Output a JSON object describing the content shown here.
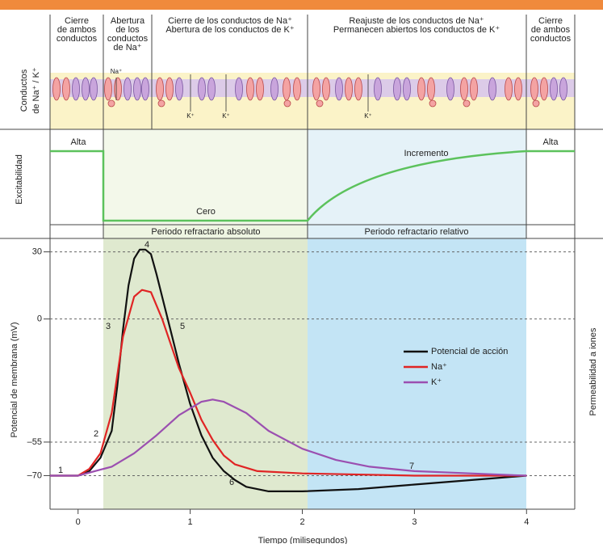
{
  "chart_data": {
    "type": "line",
    "x_label": "Tiempo (milisegundos)",
    "y_label": "Potencial de membrana (mV)",
    "y2_label": "Permeabilidad a iones",
    "xlim": [
      -0.25,
      4.43
    ],
    "xticks": [
      0,
      1,
      2,
      3,
      4
    ],
    "ylim": [
      -85,
      36
    ],
    "yticks": [
      30,
      0,
      {
        "value": -55,
        "label": "–55"
      },
      {
        "value": -70,
        "label": "–70"
      }
    ],
    "grid": true,
    "grid_style": "dashed",
    "series": [
      {
        "name": "Potencial de acción",
        "color": "#111111",
        "x": [
          -0.25,
          0,
          0.1,
          0.2,
          0.3,
          0.35,
          0.4,
          0.45,
          0.5,
          0.55,
          0.6,
          0.65,
          0.7,
          0.8,
          0.9,
          1.0,
          1.1,
          1.2,
          1.3,
          1.4,
          1.5,
          1.7,
          2.0,
          2.5,
          3.0,
          3.5,
          4.0
        ],
        "values": [
          -70,
          -70,
          -68,
          -62,
          -50,
          -30,
          -5,
          15,
          27,
          31,
          31,
          29,
          20,
          0,
          -20,
          -38,
          -52,
          -62,
          -68,
          -72,
          -75,
          -77,
          -77,
          -76,
          -74,
          -72,
          -70
        ]
      },
      {
        "name": "Na⁺",
        "color": "#e02424",
        "x": [
          -0.25,
          0,
          0.1,
          0.2,
          0.3,
          0.4,
          0.5,
          0.57,
          0.65,
          0.75,
          0.9,
          1.0,
          1.1,
          1.2,
          1.3,
          1.4,
          1.6,
          2.0,
          3.0,
          4.0
        ],
        "values": [
          -70,
          -70,
          -67,
          -60,
          -42,
          -8,
          10,
          13,
          12,
          0,
          -22,
          -33,
          -45,
          -54,
          -61,
          -65,
          -68,
          -69,
          -70,
          -70
        ]
      },
      {
        "name": "K⁺",
        "color": "#9b4fb0",
        "x": [
          -0.25,
          0,
          0.3,
          0.5,
          0.7,
          0.9,
          1.1,
          1.2,
          1.3,
          1.5,
          1.7,
          2.0,
          2.3,
          2.6,
          3.0,
          3.5,
          4.0
        ],
        "values": [
          -70,
          -70,
          -66,
          -60,
          -52,
          -43,
          -37,
          -36,
          -37,
          -42,
          -50,
          -58,
          -63,
          -66,
          -68,
          -69,
          -70
        ]
      }
    ],
    "annotations": [
      "1",
      "2",
      "3",
      "4",
      "5",
      "6",
      "7"
    ],
    "legend": "center-right"
  },
  "panels": {
    "row_label_channels": [
      "Conductos",
      "de Na⁺ / K⁺"
    ],
    "row_label_excitability": "Excitabilidad",
    "header": [
      {
        "lines": [
          "Cierre",
          "de ambos",
          "conductos"
        ]
      },
      {
        "lines": [
          "Abertura",
          "de los",
          "conductos",
          "de Na⁺"
        ]
      },
      {
        "lines": [
          "Cierre de los conductos de Na⁺",
          "Abertura de los conductos de K⁺"
        ]
      },
      {
        "lines": [
          "Reajuste de los conductos de Na⁺",
          "Permanecen abiertos los conductos de K⁺"
        ]
      },
      {
        "lines": [
          "Cierre",
          "de ambos",
          "conductos"
        ]
      }
    ],
    "ion_na": "Na⁺",
    "ion_k": "K⁺",
    "excitability": [
      "Alta",
      "Cero",
      "Incremento",
      "Alta"
    ],
    "refractory": [
      "Periodo refractario absoluto",
      "Periodo refractario relativo"
    ]
  }
}
